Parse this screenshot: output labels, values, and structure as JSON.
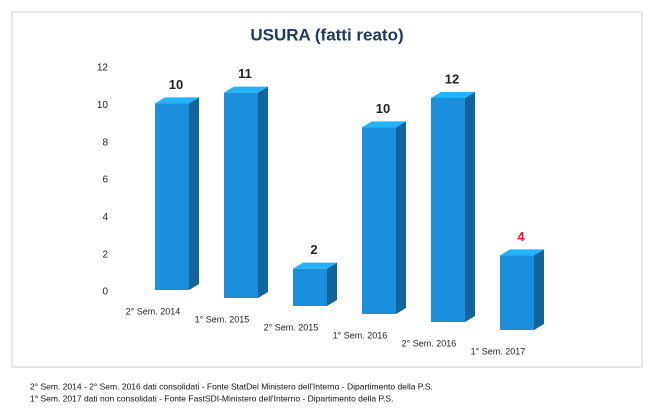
{
  "chart_data": {
    "type": "bar3d",
    "title": "USURA (fatti reato)",
    "categories": [
      "2° Sem. 2014",
      "1° Sem. 2015",
      "2° Sem. 2015",
      "1° Sem. 2016",
      "2° Sem. 2016",
      "1° Sem. 2017"
    ],
    "values": [
      10,
      11,
      2,
      10,
      12,
      4
    ],
    "value_label_colors": [
      "#222222",
      "#222222",
      "#222222",
      "#222222",
      "#222222",
      "#e8141f"
    ],
    "color": "#1b8fdc",
    "ylim": [
      0,
      12
    ],
    "yticks": [
      0,
      2,
      4,
      6,
      8,
      10,
      12
    ],
    "notes": [
      "2° Sem. 2014 - 2° Sem. 2016 dati consolidati - Fonte StatDel Ministero dell'Interno - Dipartimento della P.S.",
      "1° Sem. 2017 dati non consolidati - Fonte FastSDI-Ministero dell'Interno - Dipartimento della P.S."
    ]
  }
}
